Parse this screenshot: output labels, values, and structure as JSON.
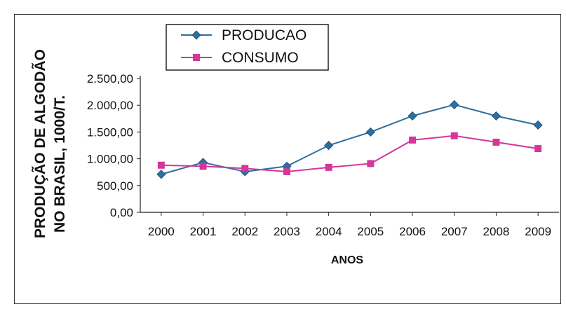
{
  "chart_data": {
    "type": "line",
    "categories": [
      "2000",
      "2001",
      "2002",
      "2003",
      "2004",
      "2005",
      "2006",
      "2007",
      "2008",
      "2009"
    ],
    "series": [
      {
        "name": "PRODUCAO",
        "values": [
          710,
          930,
          760,
          860,
          1250,
          1500,
          1800,
          2010,
          1800,
          1630
        ],
        "color": "#2e6f9e",
        "marker": "diamond"
      },
      {
        "name": "CONSUMO",
        "values": [
          880,
          860,
          820,
          760,
          840,
          910,
          1350,
          1430,
          1310,
          1190
        ],
        "color": "#d6359a",
        "marker": "square"
      }
    ],
    "xlabel": "ANOS",
    "ylabel_line1": "PRODUÇÃO DE ALGODÃO",
    "ylabel_line2": "NO BRASIL, 1000/T.",
    "yticks": [
      "0,00",
      "500,00",
      "1.000,00",
      "1.500,00",
      "2.000,00",
      "2.500,00"
    ],
    "ylim": [
      0,
      2500
    ],
    "legend_position": "top-left"
  }
}
